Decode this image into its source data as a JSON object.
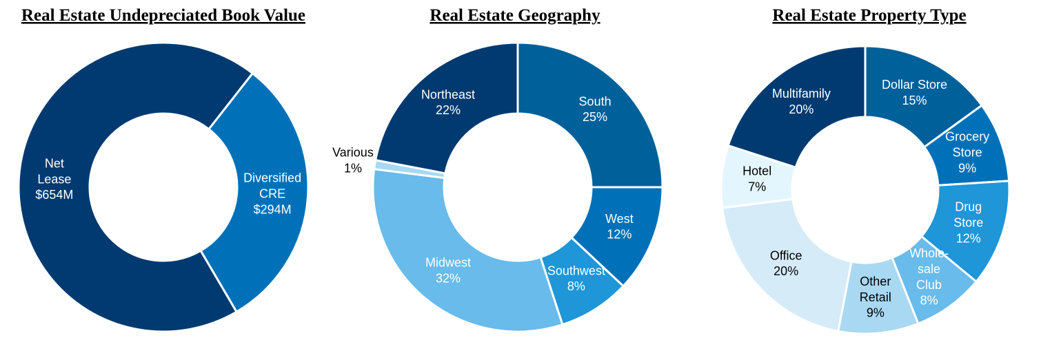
{
  "chart_data": [
    {
      "type": "pie",
      "title": "Real Estate Undepreciated Book Value",
      "categories": [
        "Diversified\nCRE",
        "Net\nLease"
      ],
      "values": [
        294,
        654
      ],
      "value_labels": [
        "$294M",
        "$654M"
      ],
      "colors": [
        "#0071b9",
        "#003a70"
      ]
    },
    {
      "type": "pie",
      "title": "Real Estate Geography",
      "categories": [
        "South",
        "West",
        "Southwest",
        "Midwest",
        "Various",
        "Northeast"
      ],
      "values": [
        25,
        12,
        8,
        32,
        1,
        22
      ],
      "value_labels": [
        "25%",
        "12%",
        "8%",
        "32%",
        "1%",
        "22%"
      ],
      "colors": [
        "#00609a",
        "#0071b9",
        "#1e96d8",
        "#68bbea",
        "#a9d8f2",
        "#003a70"
      ]
    },
    {
      "type": "pie",
      "title": "Real Estate Property Type",
      "categories": [
        "Dollar Store",
        "Grocery\nStore",
        "Drug\nStore",
        "Whole-\nsale\nClub",
        "Other\nRetail",
        "Office",
        "Hotel",
        "Multifamily"
      ],
      "values": [
        15,
        9,
        12,
        8,
        9,
        20,
        7,
        20
      ],
      "value_labels": [
        "15%",
        "9%",
        "12%",
        "8%",
        "9%",
        "20%",
        "7%",
        "20%"
      ],
      "colors": [
        "#00609a",
        "#0071b9",
        "#1e96d8",
        "#68bbea",
        "#a9d8f2",
        "#d5ebf8",
        "#e4f6fd",
        "#003a70"
      ]
    }
  ]
}
